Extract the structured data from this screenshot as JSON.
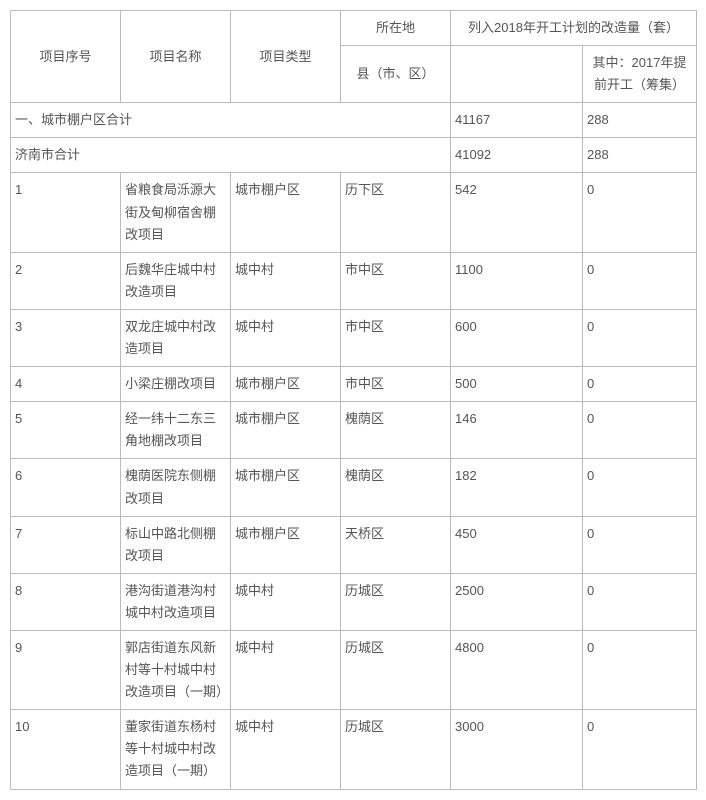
{
  "table": {
    "headers": {
      "col1": "项目序号",
      "col2": "项目名称",
      "col3": "项目类型",
      "col4": "所在地",
      "col5_group": "列入2018年开工计划的改造量（套）",
      "col4_sub": "县（市、区）",
      "col6_sub": "其中：2017年提前开工（筹集）"
    },
    "summary1": {
      "label": "一、城市棚户区合计",
      "v1": "41167",
      "v2": "288"
    },
    "summary2": {
      "label": "济南市合计",
      "v1": "41092",
      "v2": "288"
    },
    "rows": [
      {
        "n": "1",
        "name": "省粮食局泺源大街及甸柳宿舍棚改项目",
        "type": "城市棚户区",
        "area": "历下区",
        "v1": "542",
        "v2": "0"
      },
      {
        "n": "2",
        "name": "后魏华庄城中村改造项目",
        "type": "城中村",
        "area": "市中区",
        "v1": "1100",
        "v2": "0"
      },
      {
        "n": "3",
        "name": "双龙庄城中村改造项目",
        "type": "城中村",
        "area": "市中区",
        "v1": "600",
        "v2": "0"
      },
      {
        "n": "4",
        "name": "小梁庄棚改项目",
        "type": "城市棚户区",
        "area": "市中区",
        "v1": "500",
        "v2": "0"
      },
      {
        "n": "5",
        "name": "经一纬十二东三角地棚改项目",
        "type": "城市棚户区",
        "area": "槐荫区",
        "v1": "146",
        "v2": "0"
      },
      {
        "n": "6",
        "name": "槐荫医院东侧棚改项目",
        "type": "城市棚户区",
        "area": "槐荫区",
        "v1": "182",
        "v2": "0"
      },
      {
        "n": "7",
        "name": "标山中路北侧棚改项目",
        "type": "城市棚户区",
        "area": "天桥区",
        "v1": "450",
        "v2": "0"
      },
      {
        "n": "8",
        "name": "港沟街道港沟村城中村改造项目",
        "type": "城中村",
        "area": "历城区",
        "v1": "2500",
        "v2": "0"
      },
      {
        "n": "9",
        "name": "郭店街道东风新村等十村城中村改造项目（一期）",
        "type": "城中村",
        "area": "历城区",
        "v1": "4800",
        "v2": "0"
      },
      {
        "n": "10",
        "name": "董家街道东杨村等十村城中村改造项目（一期）",
        "type": "城中村",
        "area": "历城区",
        "v1": "3000",
        "v2": "0"
      }
    ],
    "colors": {
      "border": "#bbbbbb",
      "text": "#555555",
      "bg": "#ffffff"
    },
    "font": {
      "size_pt": 10,
      "line_height": 1.7
    }
  }
}
